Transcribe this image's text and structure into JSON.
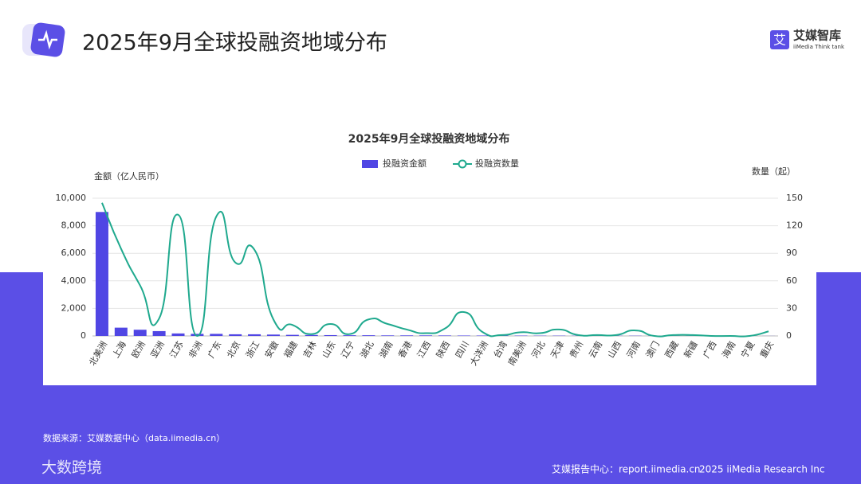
{
  "header": {
    "title": "2025年9月全球投融资地域分布",
    "logo_name": "艾媒智库",
    "logo_sub": "iiMedia Think tank"
  },
  "chart_data": {
    "type": "bar-line",
    "title": "2025年9月全球投融资地域分布",
    "y_label": "金额（亿人民币）",
    "y2_label": "数量（起）",
    "categories": [
      "北美洲",
      "上海",
      "欧洲",
      "亚洲",
      "江苏",
      "非洲",
      "广东",
      "北京",
      "浙江",
      "安徽",
      "福建",
      "吉林",
      "山东",
      "辽宁",
      "湖北",
      "湖南",
      "香港",
      "江西",
      "陕西",
      "四川",
      "大洋洲",
      "台湾",
      "南美洲",
      "河北",
      "天津",
      "贵州",
      "云南",
      "山西",
      "河南",
      "澳门",
      "西藏",
      "新疆",
      "广西",
      "海南",
      "宁夏",
      "重庆"
    ],
    "series": [
      {
        "name": "投融资金额",
        "type": "bar",
        "color": "#5046e4",
        "values": [
          9000,
          600,
          450,
          350,
          180,
          150,
          150,
          120,
          120,
          100,
          80,
          70,
          60,
          50,
          50,
          40,
          40,
          40,
          35,
          30,
          30,
          25,
          25,
          20,
          20,
          15,
          15,
          15,
          15,
          10,
          10,
          10,
          8,
          8,
          5,
          5
        ]
      },
      {
        "name": "投融资数量",
        "type": "line",
        "axis": "y2",
        "color": "#1fa98e",
        "values": [
          145,
          95,
          55,
          19,
          132,
          0,
          130,
          80,
          94,
          18,
          12,
          2,
          13,
          2,
          18,
          13,
          7,
          3,
          8,
          26,
          4,
          1,
          4,
          3,
          7,
          1,
          1,
          1,
          6,
          0,
          1,
          1,
          0,
          0,
          0,
          5
        ]
      }
    ],
    "ylim": [
      0,
      10000
    ],
    "yticks": [
      0,
      {
        "value": 2000,
        "label": "2,000"
      },
      {
        "value": 4000,
        "label": "4,000"
      },
      {
        "value": 6000,
        "label": "6,000"
      },
      {
        "value": 8000,
        "label": "8,000"
      },
      {
        "value": 10000,
        "label": "10,000"
      }
    ],
    "y2lim": [
      0,
      150
    ],
    "y2ticks": [
      0,
      30,
      60,
      90,
      120,
      150
    ],
    "grid": true,
    "legend": "top"
  },
  "footer": {
    "source": "数据来源：艾媒数据中心（data.iimedia.cn）",
    "report": "艾媒报告中心：report.iimedia.cn",
    "copyright": "2025 iiMedia Research Inc",
    "watermark": "大数跨境"
  }
}
